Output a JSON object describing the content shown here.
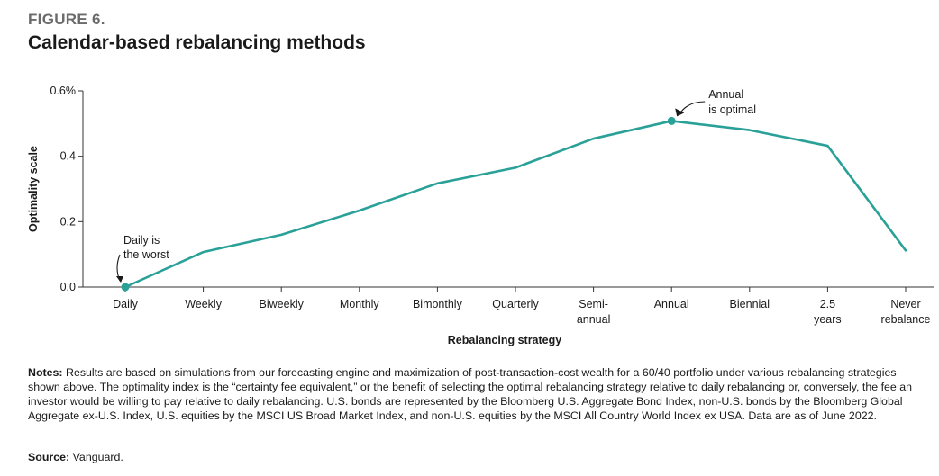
{
  "figure": {
    "label": "FIGURE 6.",
    "title": "Calendar-based rebalancing methods"
  },
  "chart_data": {
    "type": "line",
    "title": "Calendar-based rebalancing methods",
    "xlabel": "Rebalancing strategy",
    "ylabel": "Optimality scale",
    "categories": [
      [
        "Daily"
      ],
      [
        "Weekly"
      ],
      [
        "Biweekly"
      ],
      [
        "Monthly"
      ],
      [
        "Bimonthly"
      ],
      [
        "Quarterly"
      ],
      [
        "Semi-",
        "annual"
      ],
      [
        "Annual"
      ],
      [
        "Biennial"
      ],
      [
        "2.5",
        "years"
      ],
      [
        "Never",
        "rebalance"
      ]
    ],
    "series": [
      {
        "values": [
          0.0,
          0.107,
          0.16,
          0.234,
          0.317,
          0.365,
          0.454,
          0.508,
          0.48,
          0.432,
          0.112
        ]
      }
    ],
    "ylim": [
      0,
      0.6
    ],
    "yticks": [
      0,
      0.2,
      0.4,
      0.6
    ],
    "ytick_labels": [
      "0.0",
      "0.2",
      "0.4",
      "0.6%"
    ],
    "grid": false,
    "line_color": "#2aa198",
    "highlight_points": [
      0,
      7
    ],
    "annotations": [
      {
        "index": 0,
        "lines": [
          "Daily is",
          "the worst"
        ]
      },
      {
        "index": 7,
        "lines": [
          "Annual",
          "is optimal"
        ]
      }
    ]
  },
  "notes": {
    "label": "Notes:",
    "text": " Results are based on simulations from our forecasting engine and maximization of post-transaction-cost wealth for a 60/40 portfolio under various rebalancing strategies shown above. The optimality index is the “certainty fee equivalent,” or the benefit of selecting the optimal rebalancing strategy relative to daily rebalancing or, conversely, the fee an investor would be willing to pay relative to daily rebalancing. U.S. bonds are represented by the Bloomberg U.S. Aggregate Bond Index, non-U.S. bonds by the Bloomberg Global Aggregate ex-U.S. Index, U.S. equities by the MSCI US Broad Market Index, and non-U.S. equities by the MSCI All Country World Index ex USA. Data are as of June 2022."
  },
  "source": {
    "label": "Source:",
    "text": " Vanguard."
  }
}
